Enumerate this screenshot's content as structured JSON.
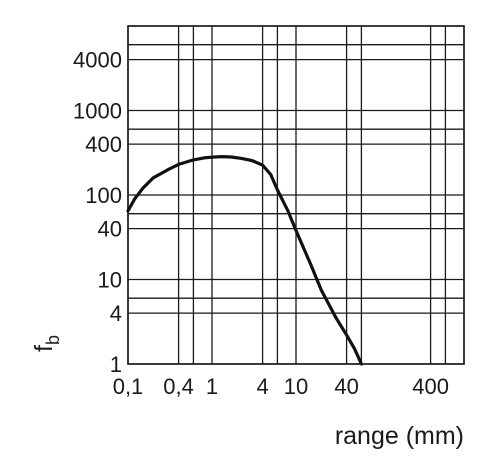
{
  "chart_data": {
    "type": "line",
    "x_scale": "log",
    "y_scale": "log",
    "xlabel": "range (mm)",
    "ylabel": "f",
    "ylabel_sub": "b",
    "xlim": [
      0.1,
      1000
    ],
    "ylim": [
      1,
      10000
    ],
    "grid": true,
    "x_ticks": [
      {
        "value": 0.1,
        "label": "0,1"
      },
      {
        "value": 0.4,
        "label": "0,4"
      },
      {
        "value": 1,
        "label": "1"
      },
      {
        "value": 4,
        "label": "4"
      },
      {
        "value": 10,
        "label": "10"
      },
      {
        "value": 40,
        "label": "40"
      },
      {
        "value": 400,
        "label": "400"
      }
    ],
    "y_ticks": [
      {
        "value": 1,
        "label": "1"
      },
      {
        "value": 4,
        "label": "4"
      },
      {
        "value": 10,
        "label": "10"
      },
      {
        "value": 40,
        "label": "40"
      },
      {
        "value": 100,
        "label": "100"
      },
      {
        "value": 400,
        "label": "400"
      },
      {
        "value": 1000,
        "label": "1000"
      },
      {
        "value": 4000,
        "label": "4000"
      }
    ],
    "x_gridlines": [
      0.1,
      0.4,
      0.6,
      1,
      4,
      6,
      10,
      40,
      60,
      400,
      600,
      1000
    ],
    "y_gridlines": [
      1,
      4,
      6,
      10,
      40,
      60,
      100,
      400,
      600,
      1000,
      4000,
      6000,
      10000
    ],
    "series": [
      {
        "x": [
          0.1,
          0.12,
          0.15,
          0.2,
          0.3,
          0.4,
          0.6,
          0.8,
          1,
          1.3,
          1.7,
          2.2,
          3,
          4,
          5,
          6,
          8,
          10,
          15,
          20,
          30,
          40,
          50,
          60
        ],
        "y": [
          65,
          90,
          120,
          160,
          200,
          230,
          260,
          275,
          280,
          285,
          282,
          272,
          255,
          225,
          175,
          115,
          65,
          38,
          15,
          7.5,
          3.5,
          2.2,
          1.5,
          1
        ]
      }
    ]
  }
}
